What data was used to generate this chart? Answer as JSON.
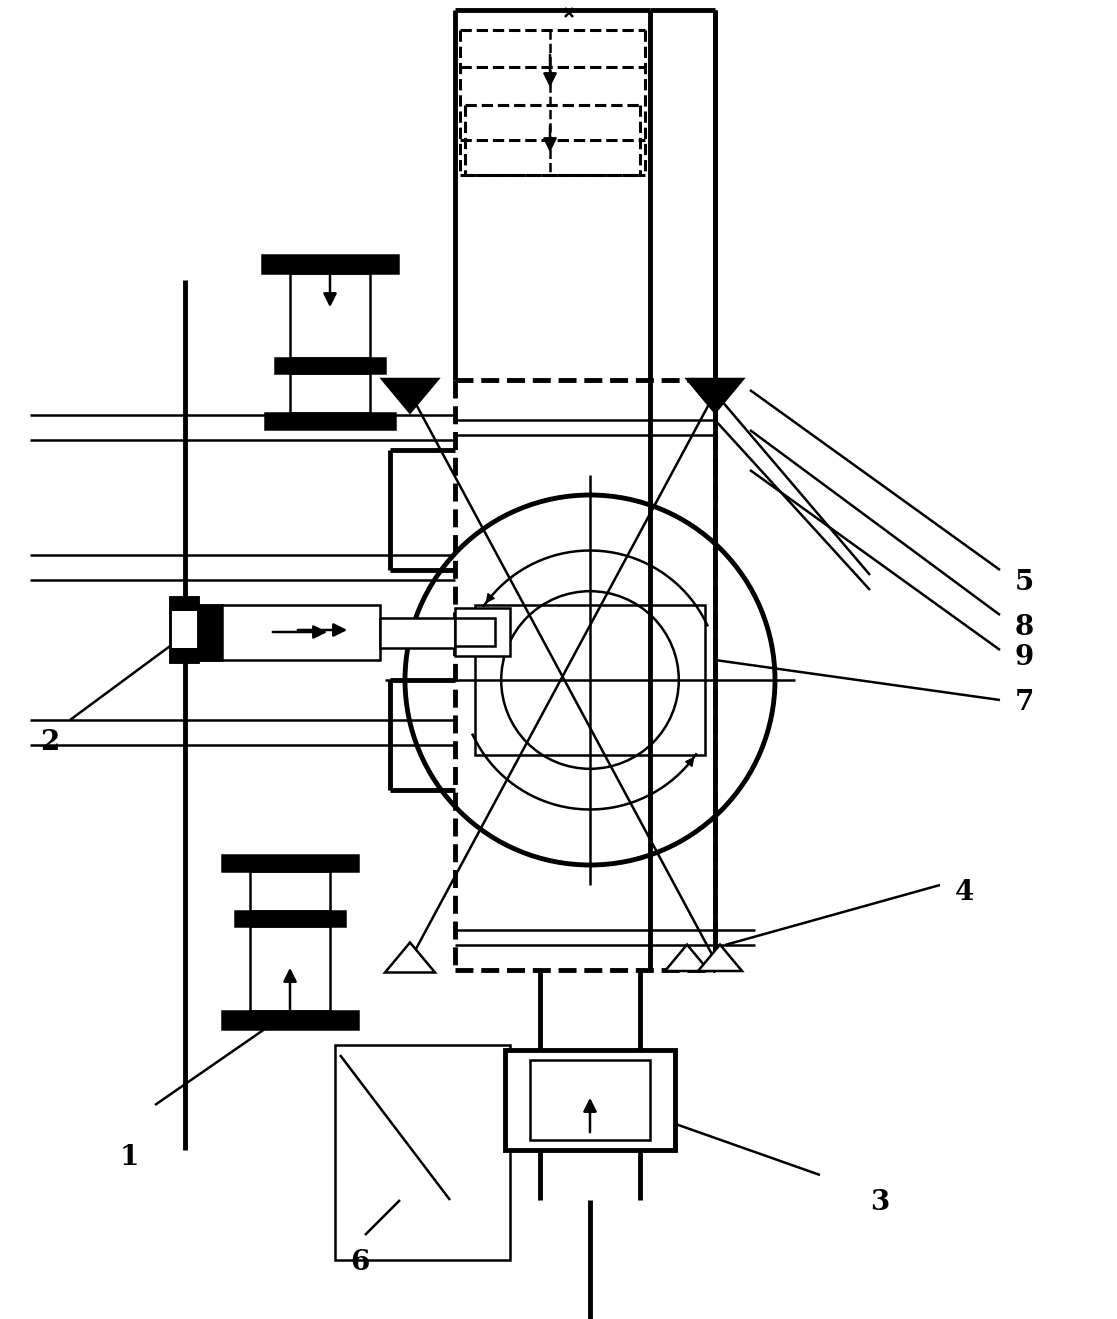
{
  "bg_color": "#ffffff",
  "line_color": "#000000",
  "lw": 1.8,
  "tlw": 3.5,
  "dlw": 2.2,
  "figsize": [
    11.17,
    13.19
  ],
  "dpi": 100
}
